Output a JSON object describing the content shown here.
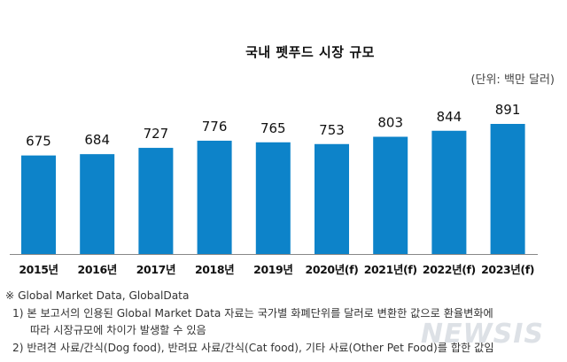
{
  "chart_data": {
    "type": "bar",
    "title": "국내 펫푸드 시장 규모",
    "unit_label": "(단위: 백만 달러)",
    "xlabel": "",
    "ylabel": "",
    "categories": [
      "2015년",
      "2016년",
      "2017년",
      "2018년",
      "2019년",
      "2020년(f)",
      "2021년(f)",
      "2022년(f)",
      "2023년(f)"
    ],
    "values": [
      675,
      684,
      727,
      776,
      765,
      753,
      803,
      844,
      891
    ],
    "data_labels": [
      "675",
      "684",
      "727",
      "776",
      "765",
      "753",
      "803",
      "844",
      "891"
    ],
    "ylim": [
      0,
      891
    ],
    "grid": false,
    "legend": "none",
    "bar_color": "#0d83c9",
    "axis_color": "#888888"
  },
  "notes": {
    "source": "※ Global Market Data, GlobalData",
    "note1_line1": "1) 본 보고서의 인용된 Global Market Data 자료는 국가별 화폐단위를 달러로 변환한 값으로 환율변화에",
    "note1_line2": "따라 시장규모에 차이가 발생할 수 있음",
    "note2": "2) 반려견 사료/간식(Dog food), 반려묘 사료/간식(Cat food), 기타 사료(Other Pet Food)를 합한 값임"
  },
  "watermark": "NEWSIS"
}
